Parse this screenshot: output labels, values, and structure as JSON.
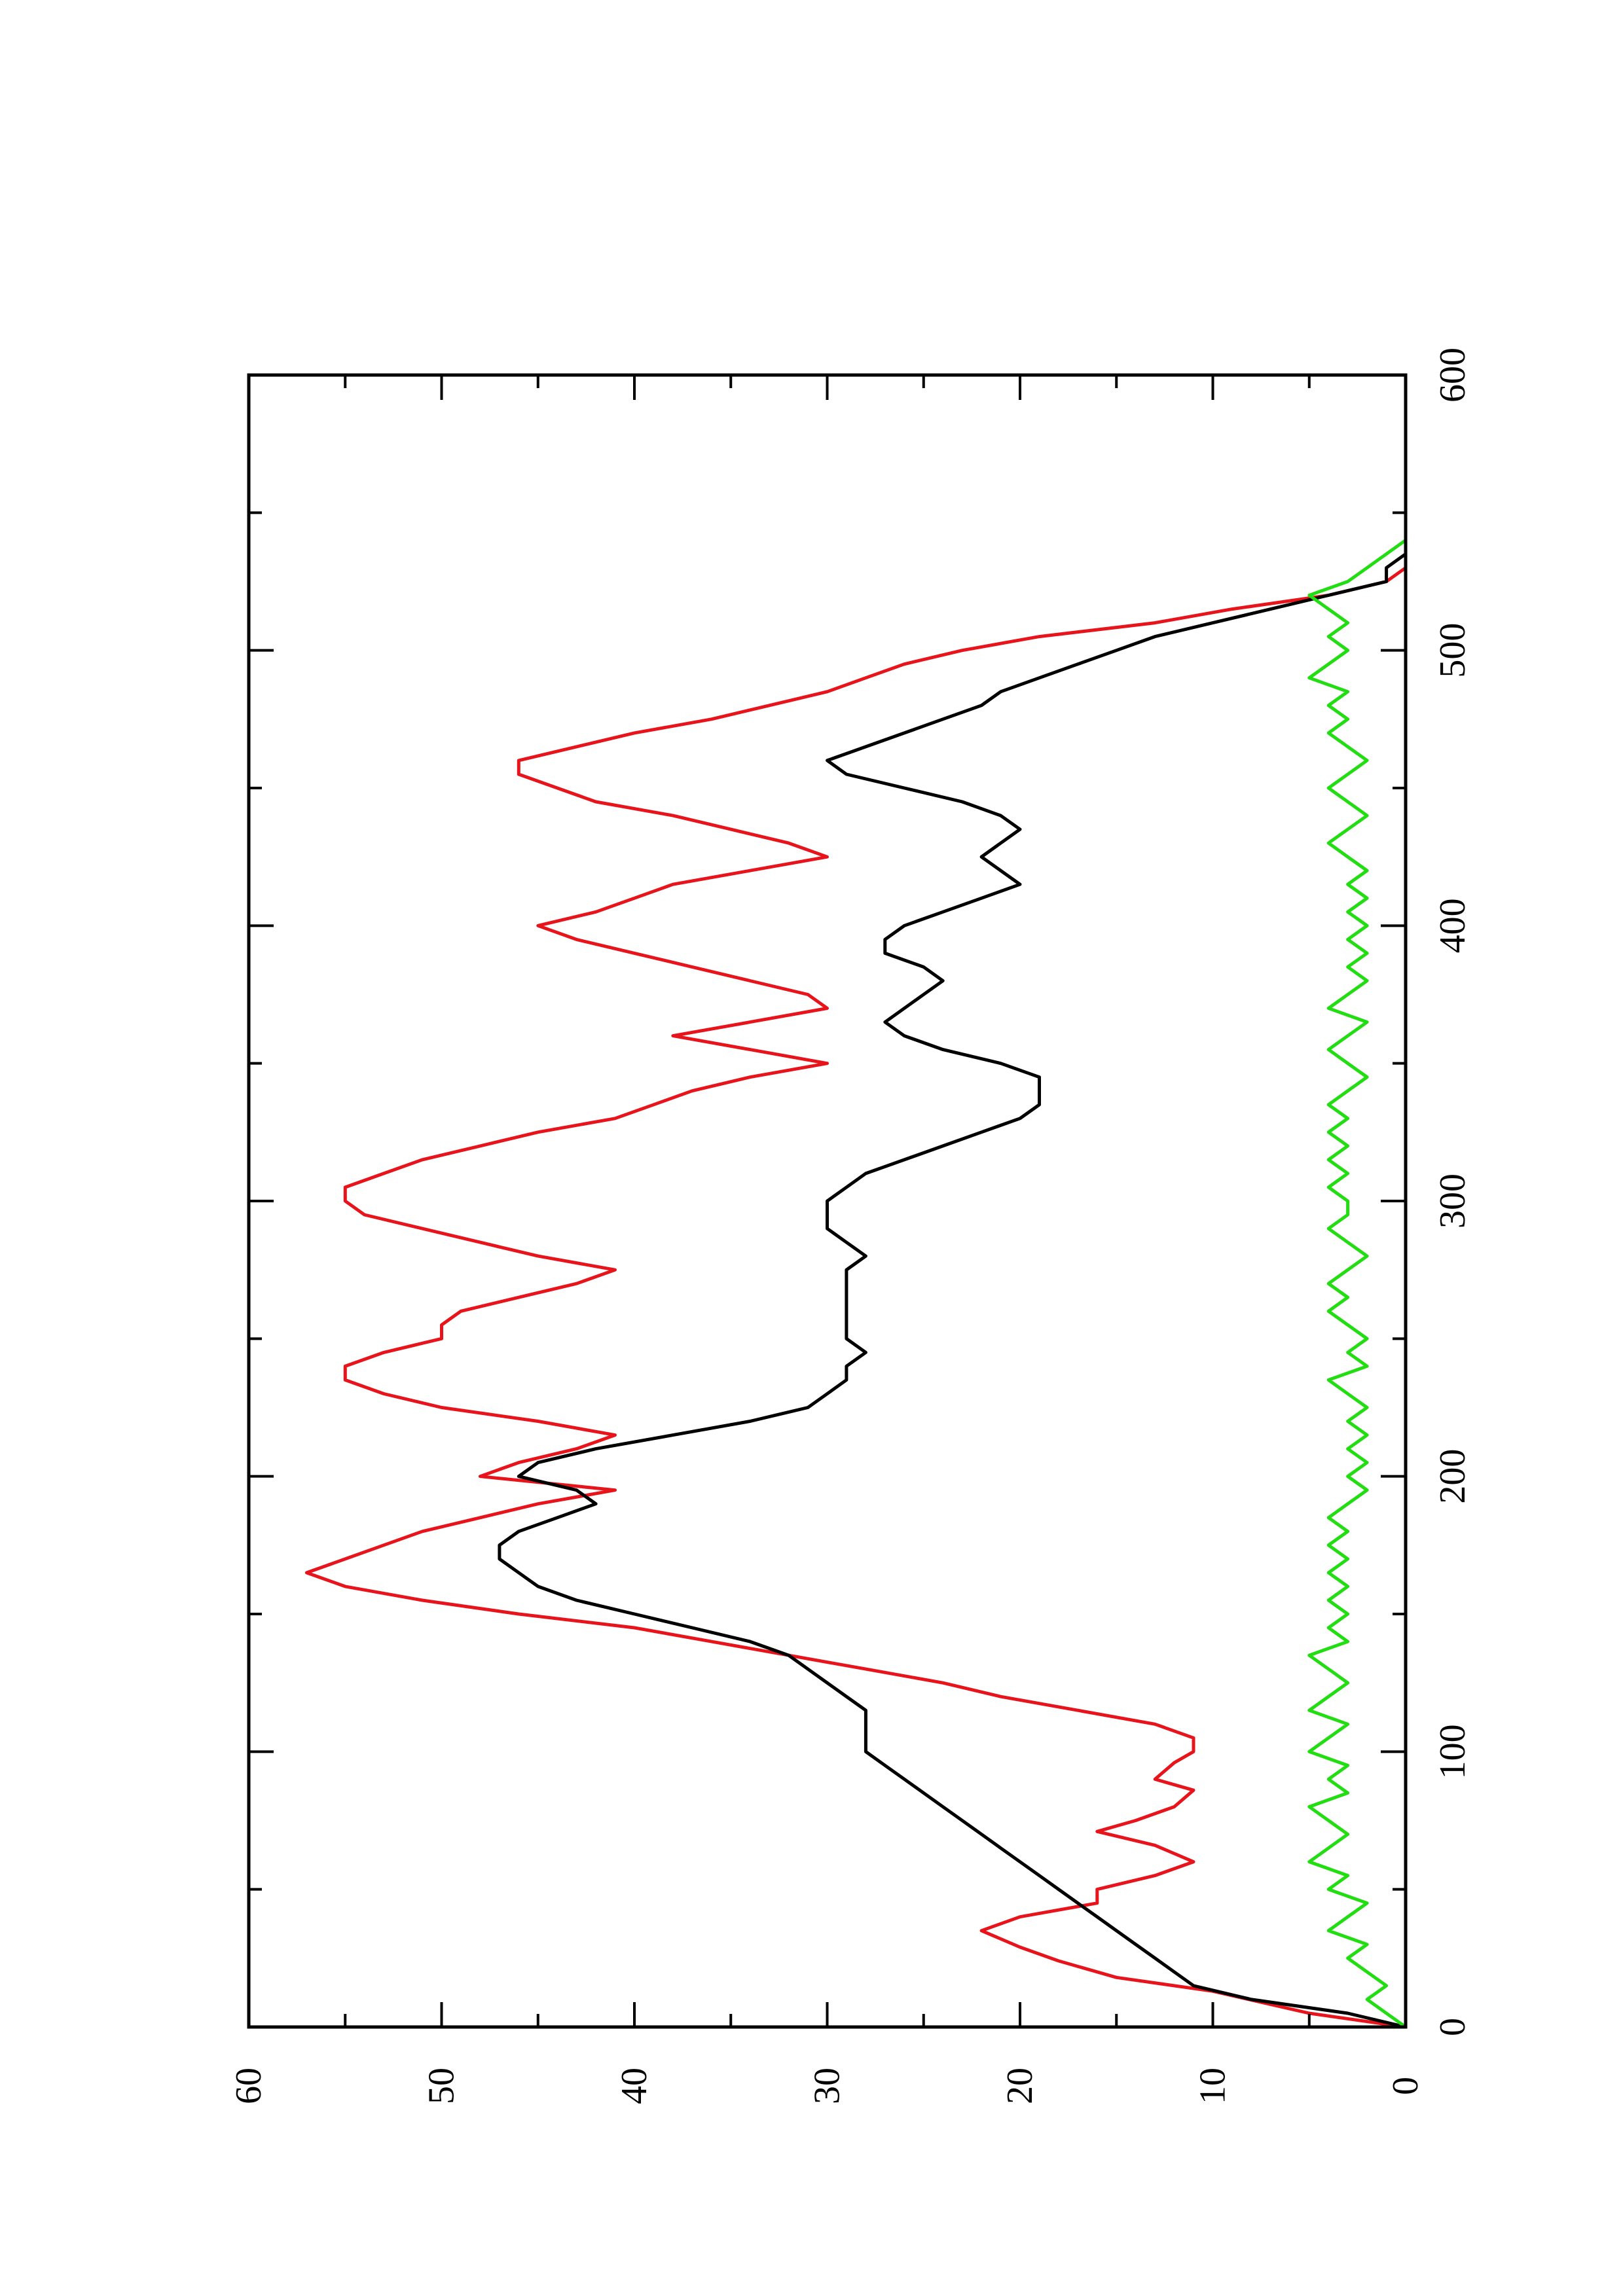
{
  "chart_data": {
    "type": "line",
    "orientation": "rotated-90-counterclockwise",
    "title": "",
    "xlabel": "",
    "ylabel": "",
    "xlim": [
      0,
      600
    ],
    "ylim": [
      0,
      60
    ],
    "x_ticks": [
      0,
      100,
      200,
      300,
      400,
      500,
      600
    ],
    "x_tick_labels": [
      "0",
      "100",
      "200",
      "300",
      "400",
      "500",
      "600"
    ],
    "y_ticks": [
      0,
      10,
      20,
      30,
      40,
      50,
      60
    ],
    "y_tick_labels": [
      "0",
      "10",
      "20",
      "30",
      "40",
      "50",
      "60"
    ],
    "grid": false,
    "legend": "none",
    "series": [
      {
        "color": "#e8141c",
        "x": [
          0,
          5,
          13,
          18,
          24,
          29,
          35,
          40,
          45,
          50,
          55,
          60,
          66,
          71,
          75,
          80,
          86,
          90,
          96,
          100,
          105,
          110,
          115,
          120,
          125,
          130,
          135,
          140,
          145,
          150,
          155,
          160,
          165,
          170,
          175,
          180,
          185,
          190,
          195,
          200,
          205,
          210,
          215,
          220,
          225,
          230,
          235,
          240,
          245,
          250,
          255,
          260,
          265,
          270,
          275,
          280,
          285,
          290,
          295,
          300,
          305,
          310,
          315,
          320,
          325,
          330,
          335,
          340,
          345,
          350,
          355,
          360,
          365,
          370,
          375,
          380,
          385,
          390,
          395,
          400,
          405,
          410,
          415,
          420,
          425,
          430,
          435,
          440,
          445,
          450,
          455,
          460,
          465,
          470,
          475,
          480,
          485,
          490,
          495,
          500,
          505,
          510,
          515,
          520,
          525,
          530,
          535,
          540
        ],
        "y": [
          0,
          5,
          10,
          15,
          18,
          20,
          22,
          20,
          16,
          16,
          13,
          11,
          13,
          16,
          14,
          12,
          11,
          13,
          12,
          11,
          11,
          13,
          17,
          21,
          24,
          28,
          32,
          36,
          40,
          46,
          51,
          55,
          57,
          55,
          53,
          51,
          48,
          45,
          41,
          48,
          46,
          43,
          41,
          45,
          50,
          53,
          55,
          55,
          53,
          50,
          50,
          49,
          46,
          43,
          41,
          45,
          48,
          51,
          54,
          55,
          55,
          53,
          51,
          48,
          45,
          41,
          39,
          37,
          34,
          30,
          34,
          38,
          34,
          30,
          31,
          34,
          37,
          40,
          43,
          45,
          42,
          40,
          38,
          34,
          30,
          32,
          35,
          38,
          42,
          44,
          46,
          46,
          43,
          40,
          36,
          33,
          30,
          28,
          26,
          23,
          19,
          13,
          9,
          4,
          1,
          0,
          0,
          0
        ]
      },
      {
        "color": "#000000",
        "x": [
          0,
          5,
          10,
          15,
          20,
          25,
          30,
          35,
          40,
          45,
          50,
          55,
          60,
          65,
          70,
          75,
          80,
          85,
          90,
          95,
          100,
          105,
          110,
          115,
          120,
          125,
          130,
          135,
          140,
          145,
          150,
          155,
          160,
          165,
          170,
          175,
          180,
          185,
          190,
          195,
          200,
          205,
          210,
          215,
          220,
          225,
          230,
          235,
          240,
          245,
          250,
          255,
          260,
          265,
          270,
          275,
          280,
          285,
          290,
          295,
          300,
          305,
          310,
          315,
          320,
          325,
          330,
          335,
          340,
          345,
          350,
          355,
          360,
          365,
          370,
          375,
          380,
          385,
          390,
          395,
          400,
          405,
          410,
          415,
          420,
          425,
          430,
          435,
          440,
          445,
          450,
          455,
          460,
          465,
          470,
          475,
          480,
          485,
          490,
          495,
          500,
          505,
          510,
          515,
          520,
          525,
          530,
          535,
          540
        ],
        "y": [
          0,
          3,
          8,
          11,
          12,
          13,
          14,
          15,
          16,
          17,
          18,
          19,
          20,
          21,
          22,
          23,
          24,
          25,
          26,
          27,
          28,
          28,
          28,
          28,
          29,
          30,
          31,
          32,
          34,
          37,
          40,
          43,
          45,
          46,
          47,
          47,
          46,
          44,
          42,
          43,
          46,
          45,
          42,
          38,
          34,
          31,
          30,
          29,
          29,
          28,
          29,
          29,
          29,
          29,
          29,
          29,
          28,
          29,
          30,
          30,
          30,
          29,
          28,
          26,
          24,
          22,
          20,
          19,
          19,
          19,
          21,
          24,
          26,
          27,
          26,
          25,
          24,
          25,
          27,
          27,
          26,
          24,
          22,
          20,
          21,
          22,
          21,
          20,
          21,
          23,
          26,
          29,
          30,
          28,
          26,
          24,
          22,
          21,
          19,
          17,
          15,
          13,
          10,
          7,
          4,
          1,
          1,
          0,
          0
        ]
      },
      {
        "color": "#22dd11",
        "x": [
          0,
          5,
          10,
          15,
          20,
          25,
          30,
          35,
          40,
          45,
          50,
          55,
          60,
          65,
          70,
          75,
          80,
          85,
          90,
          95,
          100,
          105,
          110,
          115,
          120,
          125,
          130,
          135,
          140,
          145,
          150,
          155,
          160,
          165,
          170,
          175,
          180,
          185,
          190,
          195,
          200,
          205,
          210,
          215,
          220,
          225,
          230,
          235,
          240,
          245,
          250,
          255,
          260,
          265,
          270,
          275,
          280,
          285,
          290,
          295,
          300,
          305,
          310,
          315,
          320,
          325,
          330,
          335,
          340,
          345,
          350,
          355,
          360,
          365,
          370,
          375,
          380,
          385,
          390,
          395,
          400,
          405,
          410,
          415,
          420,
          425,
          430,
          435,
          440,
          445,
          450,
          455,
          460,
          465,
          470,
          475,
          480,
          485,
          490,
          495,
          500,
          505,
          510,
          515,
          520,
          525,
          530,
          535,
          540
        ],
        "y": [
          0,
          1,
          2,
          1,
          2,
          3,
          2,
          4,
          3,
          2,
          4,
          3,
          5,
          4,
          3,
          4,
          5,
          3,
          4,
          3,
          5,
          4,
          3,
          5,
          4,
          3,
          4,
          5,
          3,
          4,
          3,
          4,
          3,
          4,
          3,
          4,
          3,
          4,
          3,
          2,
          3,
          2,
          3,
          2,
          3,
          2,
          3,
          4,
          2,
          3,
          2,
          3,
          4,
          3,
          4,
          3,
          2,
          3,
          4,
          3,
          3,
          4,
          3,
          4,
          3,
          4,
          3,
          4,
          3,
          2,
          3,
          4,
          3,
          2,
          4,
          3,
          2,
          3,
          2,
          3,
          2,
          3,
          2,
          3,
          2,
          3,
          4,
          3,
          2,
          3,
          4,
          3,
          2,
          3,
          4,
          3,
          4,
          3,
          5,
          4,
          3,
          4,
          3,
          4,
          5,
          3,
          2,
          1,
          0
        ]
      }
    ]
  }
}
